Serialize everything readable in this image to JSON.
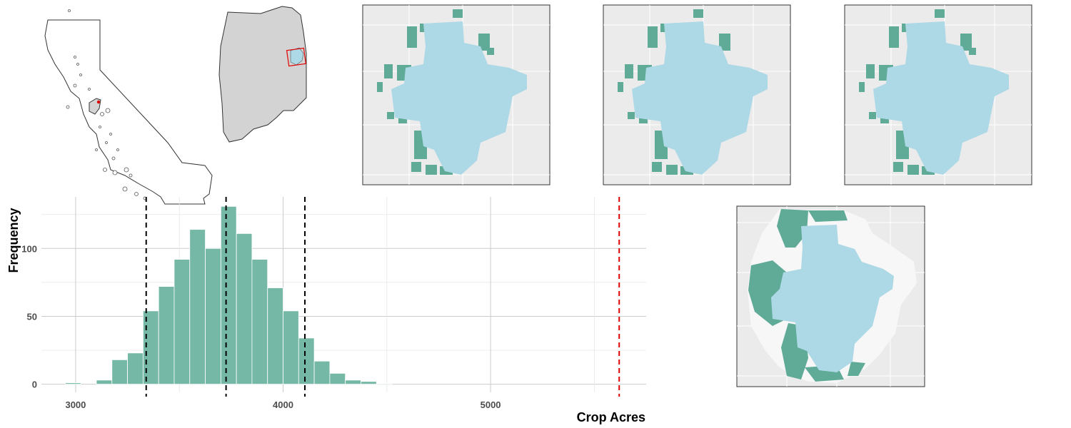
{
  "figure": {
    "colors": {
      "crop": "#5fab97",
      "crop_fill": "#74b8a5",
      "urban": "#add8e6",
      "panel_bg": "#ebebeb",
      "county": "#d3d3d3",
      "highlight": "#e00000",
      "ci_line": "#000000",
      "observed_line": "#e00000"
    },
    "map_panels": [
      {
        "name": "state-locator-map"
      },
      {
        "name": "county-locator-map"
      },
      {
        "name": "crop-map-1"
      },
      {
        "name": "crop-map-2"
      },
      {
        "name": "crop-map-3"
      },
      {
        "name": "crop-map-buffered"
      }
    ]
  },
  "chart_data": {
    "type": "bar",
    "subtype": "histogram",
    "xlabel": "Crop Acres",
    "ylabel": "Frequency",
    "xlim": [
      2835,
      5750
    ],
    "ylim": [
      -6,
      138
    ],
    "xticks": [
      3000,
      4000,
      5000
    ],
    "yticks": [
      0,
      50,
      100
    ],
    "grid": true,
    "bin_width": 75,
    "bins": [
      {
        "x0": 2950,
        "x1": 3025,
        "count": 1
      },
      {
        "x0": 3025,
        "x1": 3100,
        "count": 0
      },
      {
        "x0": 3100,
        "x1": 3175,
        "count": 3
      },
      {
        "x0": 3175,
        "x1": 3250,
        "count": 18
      },
      {
        "x0": 3250,
        "x1": 3325,
        "count": 23
      },
      {
        "x0": 3325,
        "x1": 3400,
        "count": 54
      },
      {
        "x0": 3400,
        "x1": 3475,
        "count": 72
      },
      {
        "x0": 3475,
        "x1": 3550,
        "count": 92
      },
      {
        "x0": 3550,
        "x1": 3625,
        "count": 114
      },
      {
        "x0": 3625,
        "x1": 3700,
        "count": 100
      },
      {
        "x0": 3700,
        "x1": 3775,
        "count": 131
      },
      {
        "x0": 3775,
        "x1": 3850,
        "count": 111
      },
      {
        "x0": 3850,
        "x1": 3925,
        "count": 92
      },
      {
        "x0": 3925,
        "x1": 4000,
        "count": 71
      },
      {
        "x0": 4000,
        "x1": 4075,
        "count": 54
      },
      {
        "x0": 4075,
        "x1": 4150,
        "count": 34
      },
      {
        "x0": 4150,
        "x1": 4225,
        "count": 17
      },
      {
        "x0": 4225,
        "x1": 4300,
        "count": 8
      },
      {
        "x0": 4300,
        "x1": 4375,
        "count": 3
      },
      {
        "x0": 4375,
        "x1": 4450,
        "count": 2
      },
      {
        "x0": 4450,
        "x1": 4525,
        "count": 0.5
      }
    ],
    "vlines": [
      {
        "x": 3340,
        "style": "dashed",
        "color": "#000000"
      },
      {
        "x": 3725,
        "style": "dashed",
        "color": "#000000"
      },
      {
        "x": 4105,
        "style": "dashed",
        "color": "#000000"
      },
      {
        "x": 5620,
        "style": "dashed",
        "color": "#e00000"
      }
    ]
  }
}
